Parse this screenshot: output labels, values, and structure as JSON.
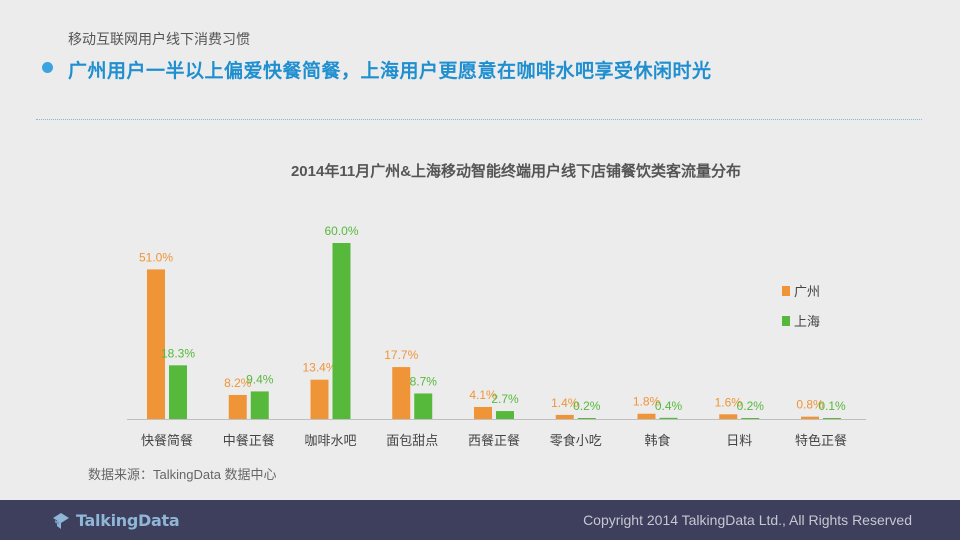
{
  "breadcrumb": "移动互联网用户线下消费习惯",
  "headline": "广州用户一半以上偏爱快餐简餐，上海用户更愿意在咖啡水吧享受休闲时光",
  "colors": {
    "bullet": "#3aa3e0",
    "guangzhou": "#f09438",
    "shanghai": "#56b93c",
    "footer": "#3d3f5c"
  },
  "chart_data": {
    "type": "bar",
    "title": "2014年11月广州&上海移动智能终端用户线下店铺餐饮类客流量分布",
    "categories": [
      "快餐简餐",
      "中餐正餐",
      "咖啡水吧",
      "面包甜点",
      "西餐正餐",
      "零食小吃",
      "韩食",
      "日料",
      "特色正餐"
    ],
    "series": [
      {
        "name": "广州",
        "color": "#f09438",
        "values": [
          51.0,
          8.2,
          13.4,
          17.7,
          4.1,
          1.4,
          1.8,
          1.6,
          0.8
        ],
        "labels": [
          "51.0%",
          "8.2%",
          "13.4%",
          "17.7%",
          "4.1%",
          "1.4%",
          "1.8%",
          "1.6%",
          "0.8%"
        ]
      },
      {
        "name": "上海",
        "color": "#56b93c",
        "values": [
          18.3,
          9.4,
          60.0,
          8.7,
          2.7,
          0.2,
          0.4,
          0.2,
          0.1
        ],
        "labels": [
          "18.3%",
          "9.4%",
          "60.0%",
          "8.7%",
          "2.7%",
          "0.2%",
          "0.4%",
          "0.2%",
          "0.1%"
        ]
      }
    ],
    "ylim": [
      0,
      60
    ],
    "legend_position": "right",
    "grid": false
  },
  "source": "数据来源：TalkingData 数据中心",
  "footer": {
    "logo_text": "TalkingData",
    "copyright": "Copyright 2014 TalkingData Ltd., All Rights Reserved"
  }
}
